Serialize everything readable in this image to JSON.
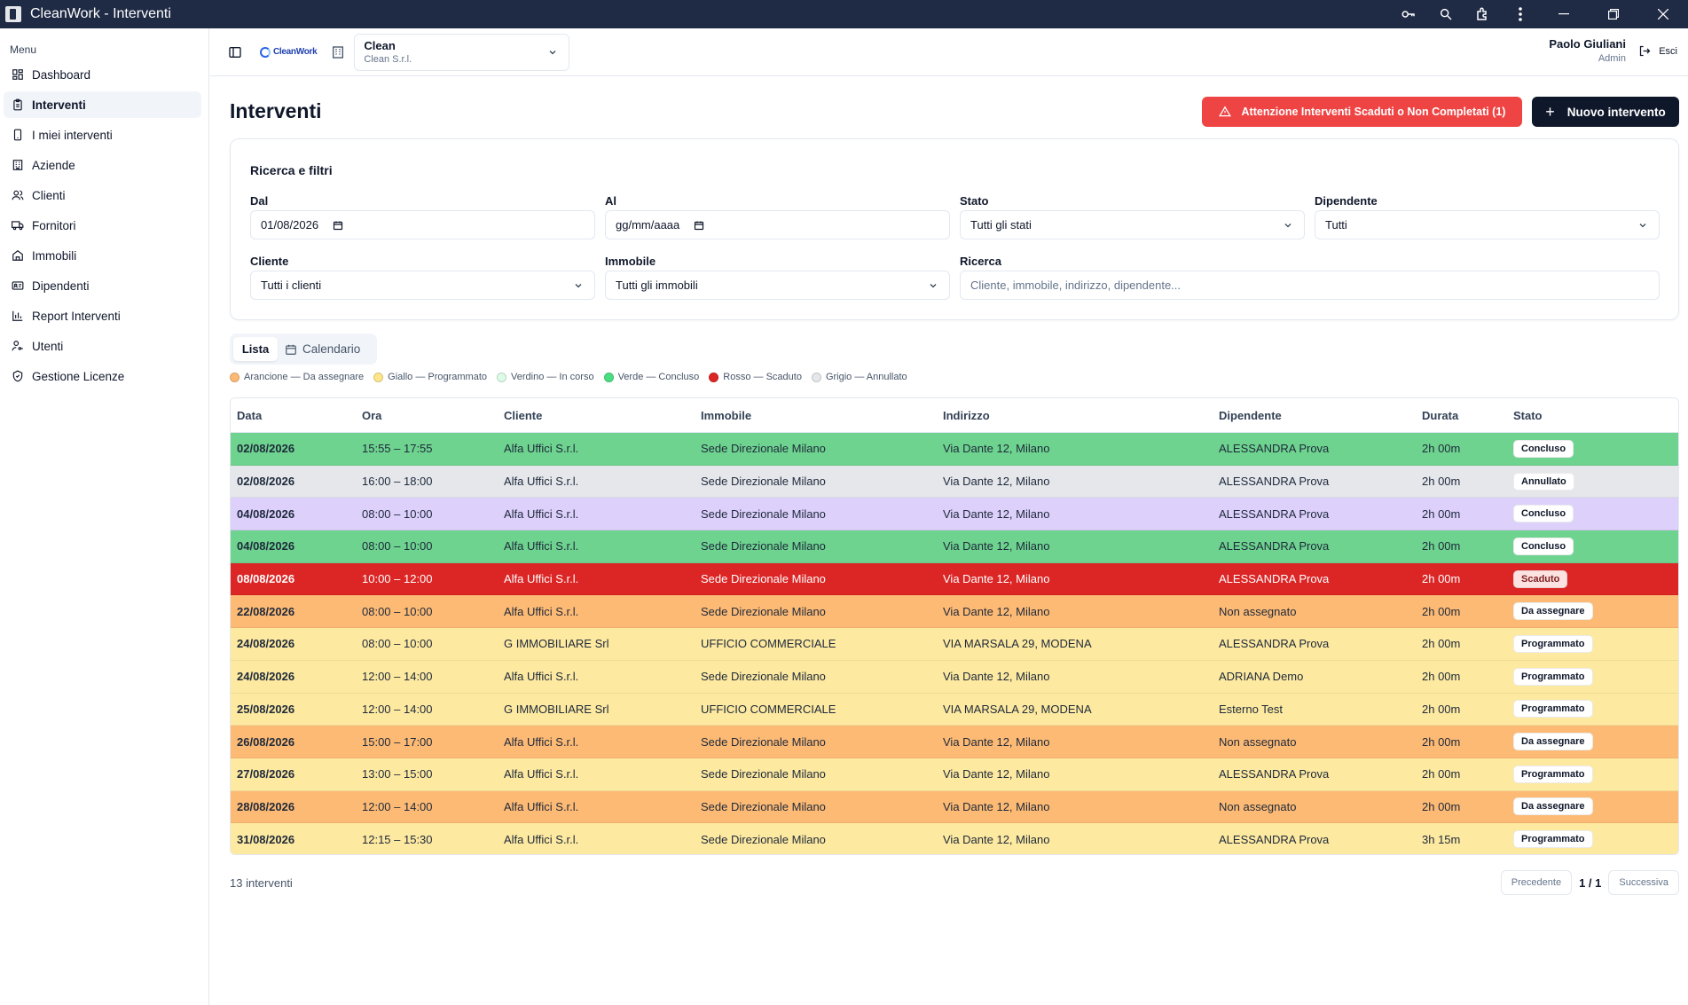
{
  "window": {
    "title": "CleanWork - Interventi"
  },
  "sidebar": {
    "heading": "Menu",
    "items": [
      {
        "label": "Dashboard",
        "icon": "dashboard-icon"
      },
      {
        "label": "Interventi",
        "icon": "clipboard-icon",
        "active": true
      },
      {
        "label": "I miei interventi",
        "icon": "phone-icon"
      },
      {
        "label": "Aziende",
        "icon": "building-icon"
      },
      {
        "label": "Clienti",
        "icon": "users-icon"
      },
      {
        "label": "Fornitori",
        "icon": "truck-icon"
      },
      {
        "label": "Immobili",
        "icon": "home-icon"
      },
      {
        "label": "Dipendenti",
        "icon": "id-card-icon"
      },
      {
        "label": "Report Interventi",
        "icon": "bar-chart-icon"
      },
      {
        "label": "Utenti",
        "icon": "user-key-icon"
      },
      {
        "label": "Gestione Licenze",
        "icon": "shield-icon"
      }
    ]
  },
  "header": {
    "logo_text": "CleanWork",
    "company": {
      "name": "Clean",
      "subtitle": "Clean S.r.l."
    },
    "user": {
      "name": "Paolo Giuliani",
      "role": "Admin"
    },
    "logout_label": "Esci"
  },
  "main": {
    "title": "Interventi",
    "warning_button": "Attenzione Interventi Scaduti o Non Completati (1)",
    "new_button": "Nuovo intervento"
  },
  "filters": {
    "title": "Ricerca e filtri",
    "dal": {
      "label": "Dal",
      "value": "01/08/2026"
    },
    "al": {
      "label": "Al",
      "placeholder": "gg/mm/aaaa"
    },
    "stato": {
      "label": "Stato",
      "value": "Tutti gli stati"
    },
    "dipendente": {
      "label": "Dipendente",
      "value": "Tutti"
    },
    "cliente": {
      "label": "Cliente",
      "value": "Tutti i clienti"
    },
    "immobile": {
      "label": "Immobile",
      "value": "Tutti gli immobili"
    },
    "ricerca": {
      "label": "Ricerca",
      "placeholder": "Cliente, immobile, indirizzo, dipendente..."
    }
  },
  "view_tabs": {
    "list": "Lista",
    "calendar": "Calendario"
  },
  "legend": [
    {
      "label": "Arancione — Da assegnare",
      "color": "#fdba74"
    },
    {
      "label": "Giallo — Programmato",
      "color": "#fde68a"
    },
    {
      "label": "Verdino — In corso",
      "color": "#dcfce7"
    },
    {
      "label": "Verde — Concluso",
      "color": "#4ade80"
    },
    {
      "label": "Rosso — Scaduto",
      "color": "#dc2626"
    },
    {
      "label": "Grigio — Annullato",
      "color": "#e5e7eb"
    }
  ],
  "table": {
    "columns": [
      "Data",
      "Ora",
      "Cliente",
      "Immobile",
      "Indirizzo",
      "Dipendente",
      "Durata",
      "Stato"
    ],
    "rows": [
      {
        "data": "02/08/2026",
        "ora": "15:55 – 17:55",
        "cliente": "Alfa Uffici S.r.l.",
        "immobile": "Sede Direzionale Milano",
        "indirizzo": "Via Dante 12, Milano",
        "dipendente": "ALESSANDRA Prova",
        "durata": "2h 00m",
        "stato": "Concluso",
        "bg": "#6ed38f"
      },
      {
        "data": "02/08/2026",
        "ora": "16:00 – 18:00",
        "cliente": "Alfa Uffici S.r.l.",
        "immobile": "Sede Direzionale Milano",
        "indirizzo": "Via Dante 12, Milano",
        "dipendente": "ALESSANDRA Prova",
        "durata": "2h 00m",
        "stato": "Annullato",
        "bg": "#e5e7eb"
      },
      {
        "data": "04/08/2026",
        "ora": "08:00 – 10:00",
        "cliente": "Alfa Uffici S.r.l.",
        "immobile": "Sede Direzionale Milano",
        "indirizzo": "Via Dante 12, Milano",
        "dipendente": "ALESSANDRA Prova",
        "durata": "2h 00m",
        "stato": "Concluso",
        "bg": "#ddd0fb"
      },
      {
        "data": "04/08/2026",
        "ora": "08:00 – 10:00",
        "cliente": "Alfa Uffici S.r.l.",
        "immobile": "Sede Direzionale Milano",
        "indirizzo": "Via Dante 12, Milano",
        "dipendente": "ALESSANDRA Prova",
        "durata": "2h 00m",
        "stato": "Concluso",
        "bg": "#6ed38f"
      },
      {
        "data": "08/08/2026",
        "ora": "10:00 – 12:00",
        "cliente": "Alfa Uffici S.r.l.",
        "immobile": "Sede Direzionale Milano",
        "indirizzo": "Via Dante 12, Milano",
        "dipendente": "ALESSANDRA Prova",
        "durata": "2h 00m",
        "stato": "Scaduto",
        "bg": "#dc2626"
      },
      {
        "data": "22/08/2026",
        "ora": "08:00 – 10:00",
        "cliente": "Alfa Uffici S.r.l.",
        "immobile": "Sede Direzionale Milano",
        "indirizzo": "Via Dante 12, Milano",
        "dipendente": "Non assegnato",
        "durata": "2h 00m",
        "stato": "Da assegnare",
        "bg": "#fdba74"
      },
      {
        "data": "24/08/2026",
        "ora": "08:00 – 10:00",
        "cliente": "G IMMOBILIARE Srl",
        "immobile": "UFFICIO COMMERCIALE",
        "indirizzo": "VIA MARSALA 29, MODENA",
        "dipendente": "ALESSANDRA Prova",
        "durata": "2h 00m",
        "stato": "Programmato",
        "bg": "#fde9a0"
      },
      {
        "data": "24/08/2026",
        "ora": "12:00 – 14:00",
        "cliente": "Alfa Uffici S.r.l.",
        "immobile": "Sede Direzionale Milano",
        "indirizzo": "Via Dante 12, Milano",
        "dipendente": "ADRIANA Demo",
        "durata": "2h 00m",
        "stato": "Programmato",
        "bg": "#fde9a0"
      },
      {
        "data": "25/08/2026",
        "ora": "12:00 – 14:00",
        "cliente": "G IMMOBILIARE Srl",
        "immobile": "UFFICIO COMMERCIALE",
        "indirizzo": "VIA MARSALA 29, MODENA",
        "dipendente": "Esterno Test",
        "durata": "2h 00m",
        "stato": "Programmato",
        "bg": "#fde9a0"
      },
      {
        "data": "26/08/2026",
        "ora": "15:00 – 17:00",
        "cliente": "Alfa Uffici S.r.l.",
        "immobile": "Sede Direzionale Milano",
        "indirizzo": "Via Dante 12, Milano",
        "dipendente": "Non assegnato",
        "durata": "2h 00m",
        "stato": "Da assegnare",
        "bg": "#fdba74"
      },
      {
        "data": "27/08/2026",
        "ora": "13:00 – 15:00",
        "cliente": "Alfa Uffici S.r.l.",
        "immobile": "Sede Direzionale Milano",
        "indirizzo": "Via Dante 12, Milano",
        "dipendente": "ALESSANDRA Prova",
        "durata": "2h 00m",
        "stato": "Programmato",
        "bg": "#fde9a0"
      },
      {
        "data": "28/08/2026",
        "ora": "12:00 – 14:00",
        "cliente": "Alfa Uffici S.r.l.",
        "immobile": "Sede Direzionale Milano",
        "indirizzo": "Via Dante 12, Milano",
        "dipendente": "Non assegnato",
        "durata": "2h 00m",
        "stato": "Da assegnare",
        "bg": "#fdba74"
      },
      {
        "data": "31/08/2026",
        "ora": "12:15 – 15:30",
        "cliente": "Alfa Uffici S.r.l.",
        "immobile": "Sede Direzionale Milano",
        "indirizzo": "Via Dante 12, Milano",
        "dipendente": "ALESSANDRA Prova",
        "durata": "3h 15m",
        "stato": "Programmato",
        "bg": "#fde9a0"
      }
    ]
  },
  "footer": {
    "count": "13 interventi",
    "prev": "Precedente",
    "page_info": "1 / 1",
    "next": "Successiva"
  }
}
